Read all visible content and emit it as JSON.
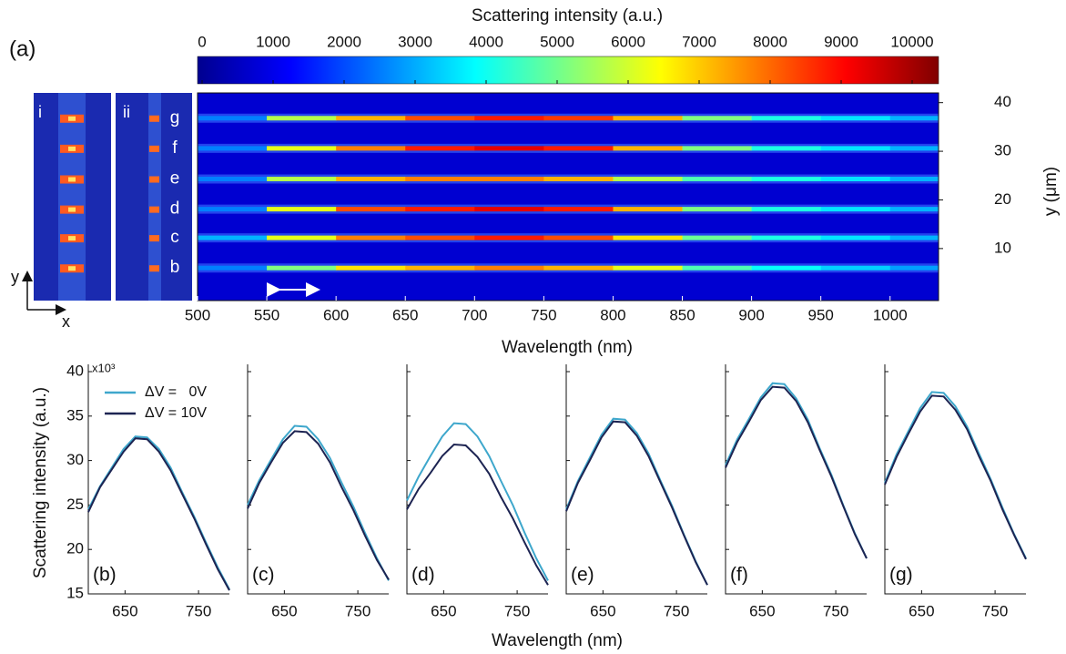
{
  "chart_data": [
    {
      "type": "heatmap",
      "panel_label": "(a)",
      "colorbar_title": "Scattering intensity (a.u.)",
      "colormap": "jet",
      "clim": [
        0,
        10000
      ],
      "colorbar_ticks": [
        0,
        1000,
        2000,
        3000,
        4000,
        5000,
        6000,
        7000,
        8000,
        9000,
        10000
      ],
      "background": 800,
      "xlabel": "Wavelength (nm)",
      "ylabel": "y (μm)",
      "xlim": [
        500,
        1035
      ],
      "xticks": [
        500,
        550,
        600,
        650,
        700,
        750,
        800,
        850,
        900,
        950,
        1000
      ],
      "ylim": [
        -0.7,
        42
      ],
      "yticks": [
        10,
        20,
        30,
        40
      ],
      "inset_labels": [
        "i",
        "ii"
      ],
      "axis_labels": {
        "y": "y",
        "x": "x"
      },
      "x": [
        500,
        550,
        600,
        650,
        700,
        750,
        800,
        850,
        900,
        950,
        1000
      ],
      "rows": [
        {
          "name": "g",
          "y": 36.8,
          "values": [
            2500,
            5500,
            7000,
            8000,
            8500,
            8200,
            7000,
            5000,
            4000,
            3500,
            3000
          ]
        },
        {
          "name": "f",
          "y": 30.6,
          "values": [
            2500,
            6000,
            7500,
            8500,
            9000,
            8500,
            7000,
            5000,
            4000,
            3500,
            3000
          ]
        },
        {
          "name": "e",
          "y": 24.3,
          "values": [
            2500,
            5500,
            7000,
            7500,
            7500,
            7000,
            5500,
            4500,
            4000,
            3500,
            3000
          ]
        },
        {
          "name": "d",
          "y": 18.1,
          "values": [
            2500,
            6000,
            8000,
            8500,
            9000,
            8500,
            7000,
            5000,
            4000,
            3500,
            3000
          ]
        },
        {
          "name": "c",
          "y": 12.2,
          "values": [
            3000,
            6000,
            7500,
            8000,
            8500,
            8000,
            6500,
            4800,
            4000,
            3500,
            3000
          ]
        },
        {
          "name": "b",
          "y": 6.0,
          "values": [
            2500,
            5000,
            6500,
            7000,
            7500,
            7000,
            6000,
            4500,
            3800,
            3300,
            2800
          ]
        }
      ]
    },
    {
      "type": "line",
      "panel_label": "(b)",
      "ylabel": "Scattering intensity (a.u.)",
      "xlabel": "Wavelength (nm)",
      "y_multiplier": "x10³",
      "legend": true,
      "xlim": [
        600,
        792
      ],
      "xticks": [
        650,
        750
      ],
      "ylim": [
        15,
        40
      ],
      "yticks": [
        15,
        20,
        25,
        30,
        35,
        40
      ],
      "x": [
        600,
        616,
        632,
        648,
        664,
        680,
        696,
        712,
        728,
        744,
        760,
        776,
        792
      ],
      "series": [
        {
          "name": "ΔV =   0V",
          "color": "#3ea7cc",
          "values": [
            24.5,
            27.1,
            29.2,
            31.3,
            32.7,
            32.6,
            31.3,
            29.2,
            26.4,
            23.7,
            20.8,
            18.0,
            15.5
          ]
        },
        {
          "name": "ΔV = 10V",
          "color": "#1d2452",
          "values": [
            24.2,
            27.0,
            29.0,
            31.0,
            32.5,
            32.4,
            31.0,
            28.9,
            26.2,
            23.5,
            20.6,
            17.8,
            15.4
          ]
        }
      ]
    },
    {
      "type": "line",
      "panel_label": "(c)",
      "xlim": [
        600,
        792
      ],
      "xticks": [
        650,
        750
      ],
      "ylim": [
        15,
        40
      ],
      "yticks": [
        15,
        20,
        25,
        30,
        35,
        40
      ],
      "x": [
        600,
        616,
        632,
        648,
        664,
        680,
        696,
        712,
        728,
        744,
        760,
        776,
        792
      ],
      "series": [
        {
          "values": [
            25.0,
            27.8,
            30.1,
            32.4,
            33.9,
            33.8,
            32.4,
            30.3,
            27.5,
            24.8,
            21.8,
            19.0,
            16.5
          ]
        },
        {
          "values": [
            24.6,
            27.5,
            29.8,
            32.0,
            33.3,
            33.2,
            31.9,
            29.8,
            27.0,
            24.4,
            21.5,
            18.8,
            16.6
          ]
        }
      ]
    },
    {
      "type": "line",
      "panel_label": "(d)",
      "xlim": [
        600,
        792
      ],
      "xticks": [
        650,
        750
      ],
      "ylim": [
        15,
        40
      ],
      "yticks": [
        15,
        20,
        25,
        30,
        35,
        40
      ],
      "x": [
        600,
        616,
        632,
        648,
        664,
        680,
        696,
        712,
        728,
        744,
        760,
        776,
        792
      ],
      "series": [
        {
          "values": [
            25.5,
            28.2,
            30.5,
            32.7,
            34.2,
            34.1,
            32.7,
            30.5,
            27.7,
            25.0,
            21.9,
            19.0,
            16.5
          ]
        },
        {
          "values": [
            24.5,
            26.8,
            28.6,
            30.5,
            31.8,
            31.7,
            30.4,
            28.5,
            25.9,
            23.5,
            20.8,
            18.2,
            16.0
          ]
        }
      ]
    },
    {
      "type": "line",
      "panel_label": "(e)",
      "xlim": [
        600,
        792
      ],
      "xticks": [
        650,
        750
      ],
      "ylim": [
        15,
        40
      ],
      "yticks": [
        15,
        20,
        25,
        30,
        35,
        40
      ],
      "x": [
        600,
        616,
        632,
        648,
        664,
        680,
        696,
        712,
        728,
        744,
        760,
        776,
        792
      ],
      "series": [
        {
          "values": [
            24.5,
            27.7,
            30.3,
            32.9,
            34.7,
            34.6,
            33.1,
            30.8,
            27.8,
            24.9,
            21.7,
            18.7,
            16.0
          ]
        },
        {
          "values": [
            24.3,
            27.5,
            30.0,
            32.6,
            34.4,
            34.3,
            32.8,
            30.5,
            27.6,
            24.7,
            21.6,
            18.6,
            16.0
          ]
        }
      ]
    },
    {
      "type": "line",
      "panel_label": "(f)",
      "xlim": [
        600,
        792
      ],
      "xticks": [
        650,
        750
      ],
      "ylim": [
        15,
        40
      ],
      "yticks": [
        15,
        20,
        25,
        30,
        35,
        40
      ],
      "x": [
        600,
        616,
        632,
        648,
        664,
        680,
        696,
        712,
        728,
        744,
        760,
        776,
        792
      ],
      "series": [
        {
          "values": [
            29.5,
            32.4,
            34.7,
            37.1,
            38.7,
            38.6,
            37.0,
            34.6,
            31.4,
            28.4,
            25.0,
            21.8,
            19.0
          ]
        },
        {
          "values": [
            29.2,
            32.1,
            34.4,
            36.8,
            38.3,
            38.2,
            36.7,
            34.3,
            31.2,
            28.2,
            24.9,
            21.7,
            19.0
          ]
        }
      ]
    },
    {
      "type": "line",
      "panel_label": "(g)",
      "xlim": [
        600,
        792
      ],
      "xticks": [
        650,
        750
      ],
      "ylim": [
        15,
        40
      ],
      "yticks": [
        15,
        20,
        25,
        30,
        35,
        40
      ],
      "x": [
        600,
        616,
        632,
        648,
        664,
        680,
        696,
        712,
        728,
        744,
        760,
        776,
        792
      ],
      "series": [
        {
          "values": [
            27.5,
            30.7,
            33.3,
            35.9,
            37.7,
            37.6,
            36.1,
            33.8,
            30.8,
            27.9,
            24.7,
            21.7,
            19.0
          ]
        },
        {
          "values": [
            27.3,
            30.4,
            33.0,
            35.5,
            37.3,
            37.2,
            35.7,
            33.5,
            30.5,
            27.7,
            24.5,
            21.6,
            18.9
          ]
        }
      ]
    }
  ]
}
